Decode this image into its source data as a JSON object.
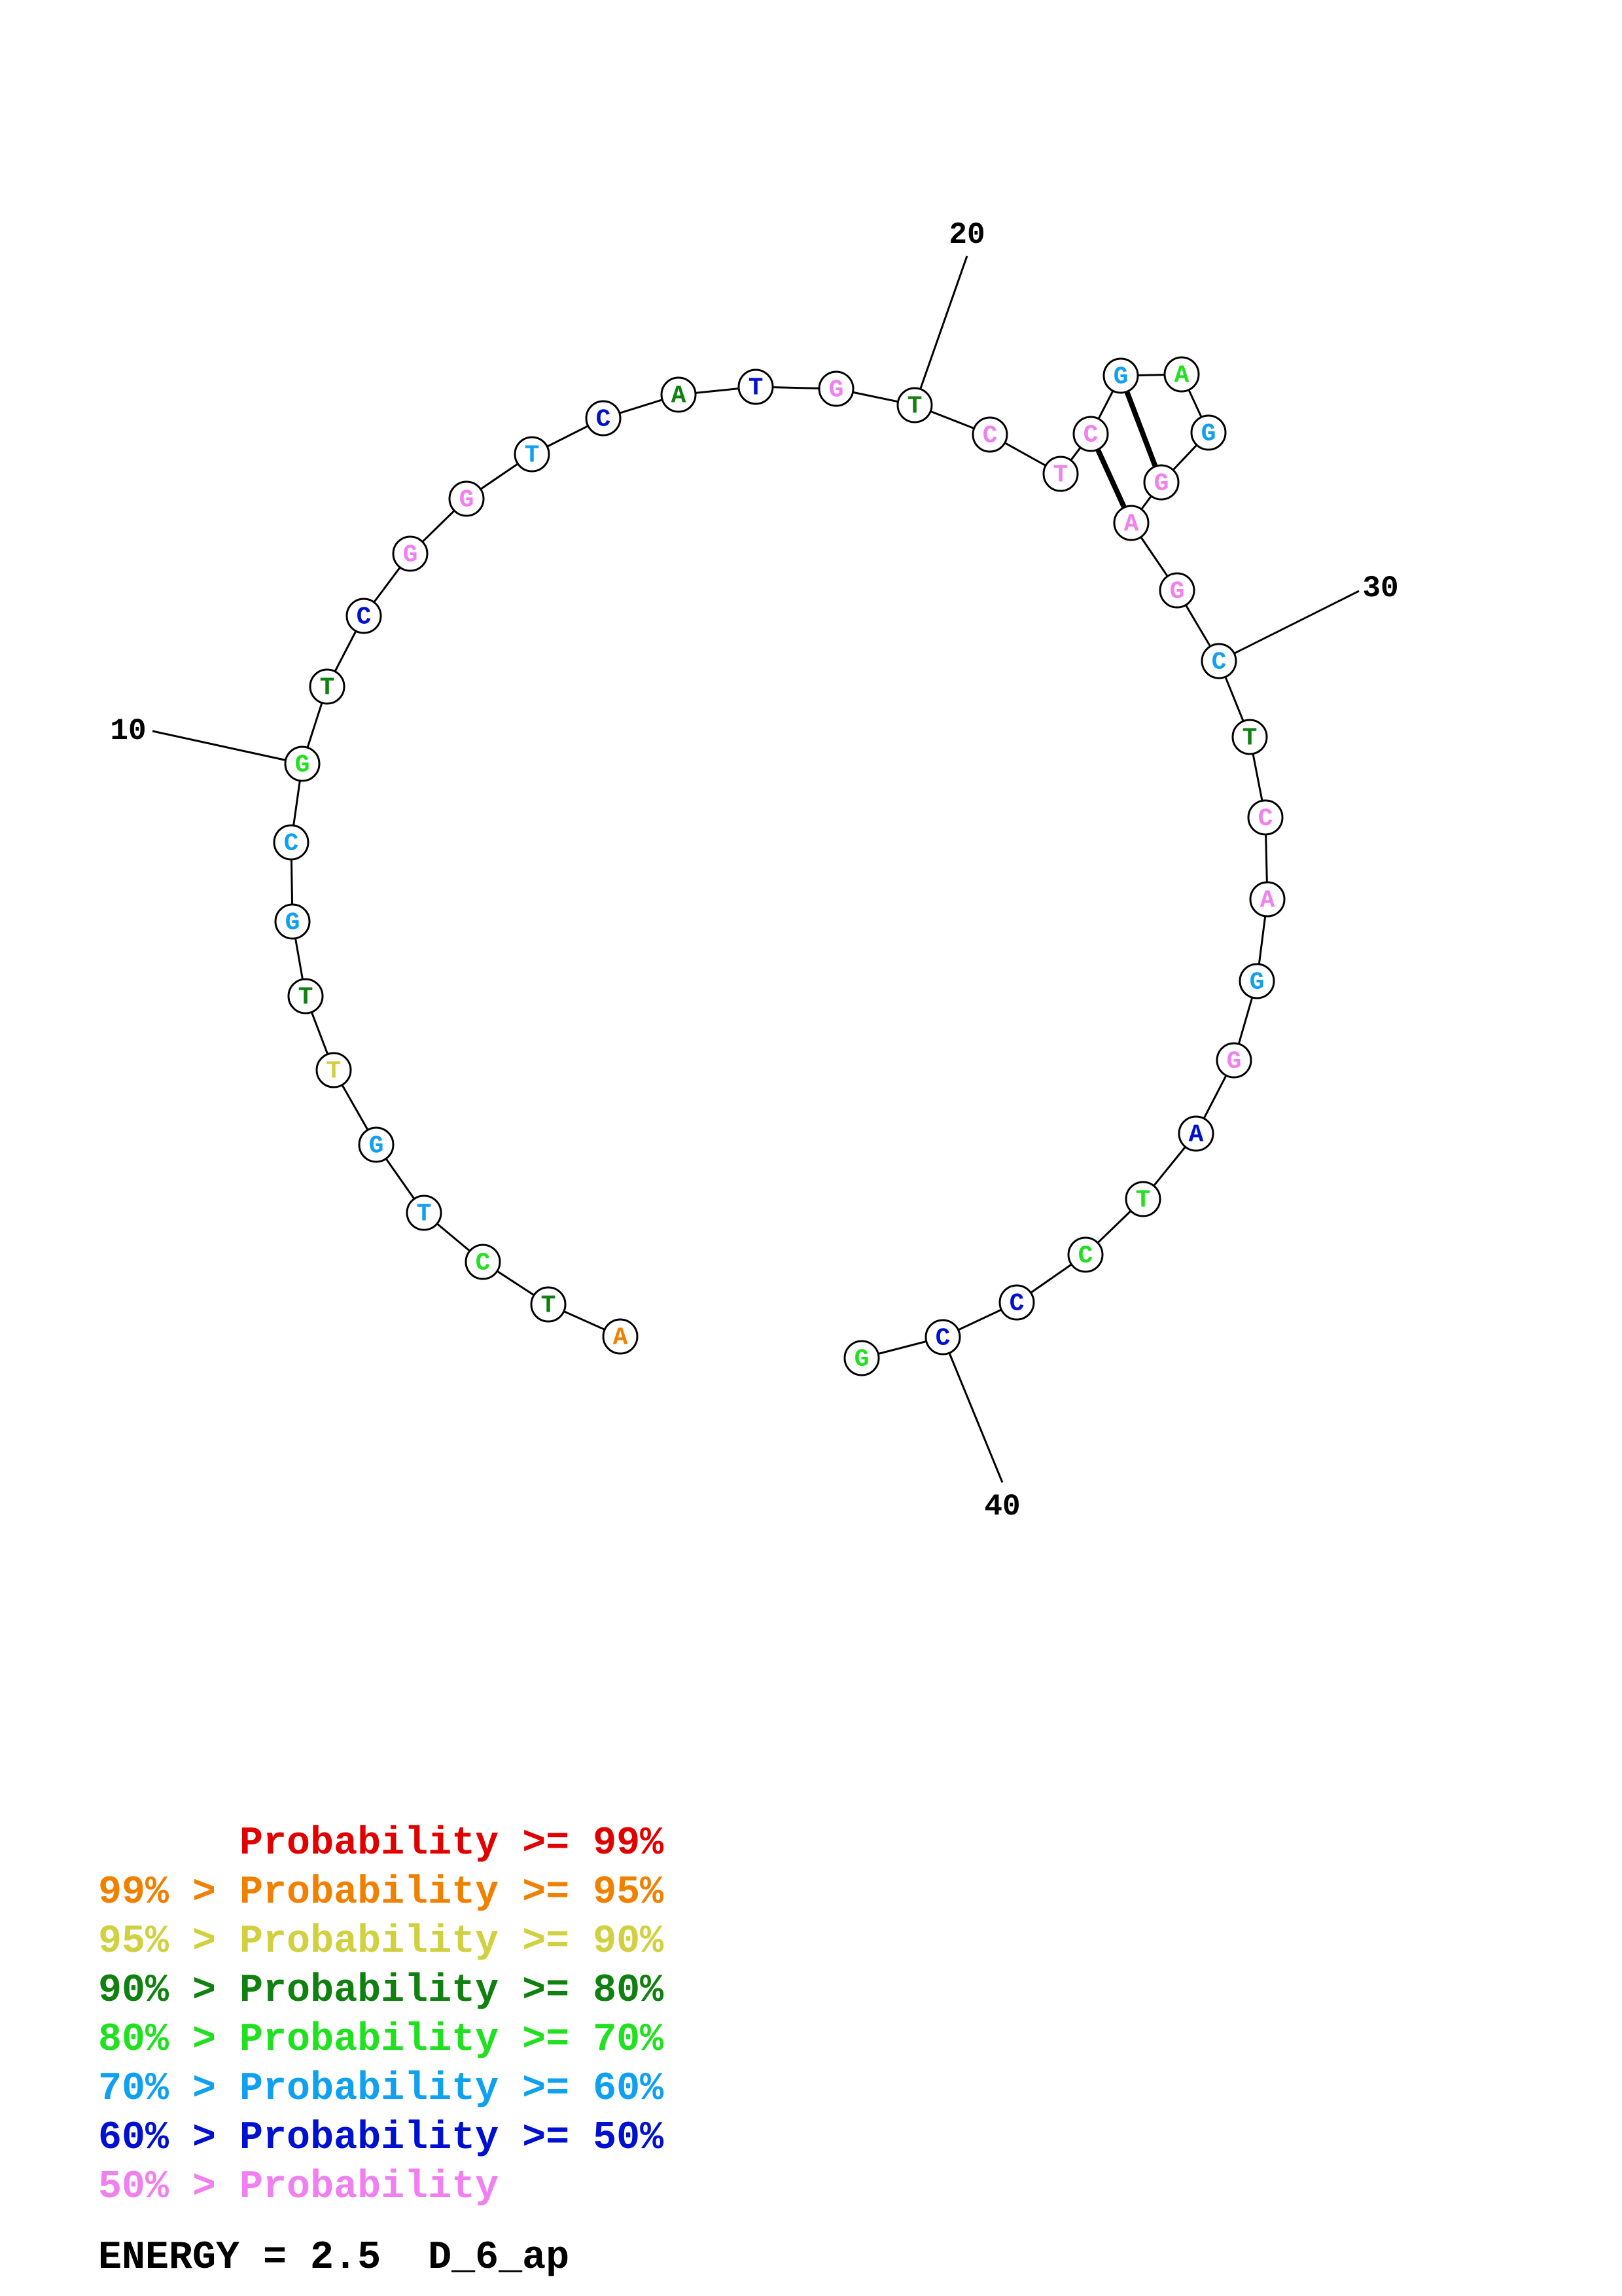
{
  "diagram": {
    "type": "rna-secondary-structure",
    "sequence": [
      "A",
      "T",
      "C",
      "T",
      "G",
      "T",
      "T",
      "G",
      "C",
      "G",
      "T",
      "C",
      "G",
      "G",
      "T",
      "C",
      "A",
      "T",
      "G",
      "T",
      "C",
      "T",
      "C",
      "G",
      "A",
      "G",
      "G",
      "A",
      "G",
      "C",
      "T",
      "C",
      "A",
      "G",
      "G",
      "A",
      "T",
      "C",
      "C",
      "C",
      "G"
    ],
    "probability_class": [
      1,
      3,
      4,
      5,
      5,
      2,
      3,
      5,
      5,
      4,
      3,
      6,
      7,
      7,
      5,
      6,
      3,
      6,
      7,
      3,
      7,
      7,
      7,
      5,
      4,
      5,
      7,
      7,
      7,
      5,
      3,
      7,
      7,
      5,
      7,
      6,
      4,
      4,
      6,
      6,
      4
    ],
    "pairs": [
      [
        22,
        27
      ],
      [
        23,
        26
      ]
    ],
    "position_labels": [
      {
        "index": 10,
        "text": "10"
      },
      {
        "index": 20,
        "text": "20"
      },
      {
        "index": 30,
        "text": "30"
      },
      {
        "index": 40,
        "text": "40"
      }
    ],
    "colors": [
      "#e00000",
      "#f08000",
      "#d0d040",
      "#108010",
      "#20e020",
      "#10a0f0",
      "#0010d0",
      "#f080f0"
    ]
  },
  "legend": [
    {
      "prefix": "",
      "label": "Probability >= 99%",
      "color": "#e00000"
    },
    {
      "prefix": "99% > ",
      "label": "Probability >= 95%",
      "color": "#f08000"
    },
    {
      "prefix": "95% > ",
      "label": "Probability >= 90%",
      "color": "#d0d040"
    },
    {
      "prefix": "90% > ",
      "label": "Probability >= 80%",
      "color": "#108010"
    },
    {
      "prefix": "80% > ",
      "label": "Probability >= 70%",
      "color": "#20e020"
    },
    {
      "prefix": "70% > ",
      "label": "Probability >= 60%",
      "color": "#10a0f0"
    },
    {
      "prefix": "60% > ",
      "label": "Probability >= 50%",
      "color": "#0010d0"
    },
    {
      "prefix": "50% > ",
      "label": "Probability",
      "color": "#f080f0"
    }
  ],
  "footer": {
    "energy_text": "ENERGY = 2.5  D_6_ap"
  }
}
